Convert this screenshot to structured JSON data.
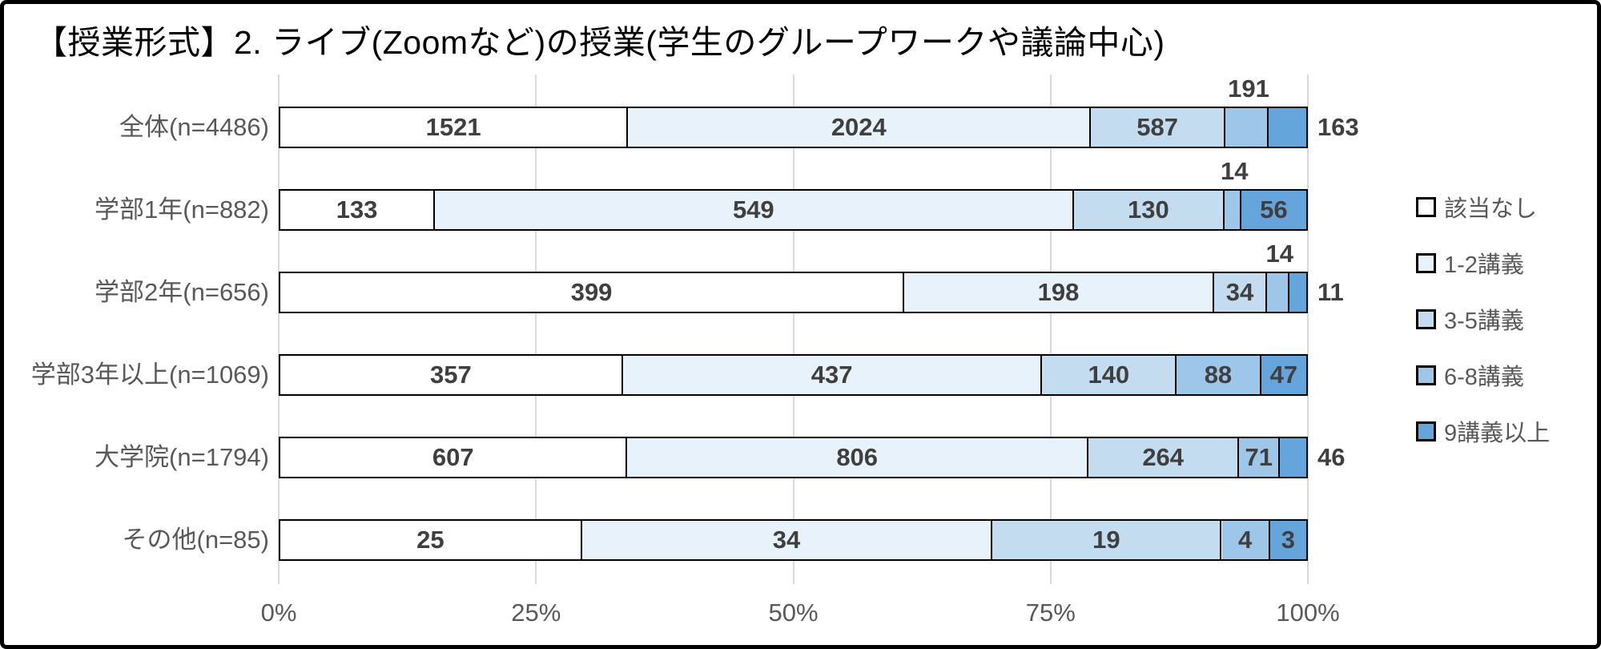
{
  "title": "【授業形式】2. ライブ(Zoomなど)の授業(学生のグループワークや議論中心)",
  "chart_data": {
    "type": "bar",
    "variant": "100-percent-stacked-horizontal",
    "title": "【授業形式】2. ライブ(Zoomなど)の授業(学生のグループワークや議論中心)",
    "categories": [
      "全体(n=4486)",
      "学部1年(n=882)",
      "学部2年(n=656)",
      "学部3年以上(n=1069)",
      "大学院(n=1794)",
      "その他(n=85)"
    ],
    "row_totals": [
      4486,
      882,
      656,
      1069,
      1794,
      85
    ],
    "series": [
      {
        "name": "該当なし",
        "color": "#FFFFFF",
        "values": [
          1521,
          133,
          399,
          357,
          607,
          25
        ]
      },
      {
        "name": "1-2講義",
        "color": "#E8F2FA",
        "values": [
          2024,
          549,
          198,
          437,
          806,
          34
        ]
      },
      {
        "name": "3-5講義",
        "color": "#C3DCF0",
        "values": [
          587,
          130,
          34,
          140,
          264,
          19
        ]
      },
      {
        "name": "6-8講義",
        "color": "#9DC6E8",
        "values": [
          191,
          14,
          14,
          88,
          71,
          4
        ]
      },
      {
        "name": "9講義以上",
        "color": "#66A5DB",
        "values": [
          163,
          56,
          11,
          47,
          46,
          3
        ]
      }
    ],
    "label_placement": [
      [
        "inside",
        "inside",
        "inside",
        "above",
        "outside"
      ],
      [
        "inside",
        "inside",
        "inside",
        "above",
        "inside"
      ],
      [
        "inside",
        "inside",
        "inside",
        "above",
        "outside"
      ],
      [
        "inside",
        "inside",
        "inside",
        "inside",
        "inside"
      ],
      [
        "inside",
        "inside",
        "inside",
        "inside",
        "outside"
      ],
      [
        "inside",
        "inside",
        "inside",
        "inside",
        "inside"
      ]
    ],
    "xticks": [
      "0%",
      "25%",
      "50%",
      "75%",
      "100%"
    ],
    "xlim": [
      0,
      100
    ],
    "grid": true,
    "legend": {
      "position": "right",
      "entries": [
        "該当なし",
        "1-2講義",
        "3-5講義",
        "6-8講義",
        "9講義以上"
      ]
    },
    "style": {
      "segment_border_color": "#000000",
      "value_label_color": "#3F3F3F",
      "axis_text_color": "#595959",
      "grid_color": "#D9D9D9",
      "frame_border_color": "#000000"
    }
  }
}
